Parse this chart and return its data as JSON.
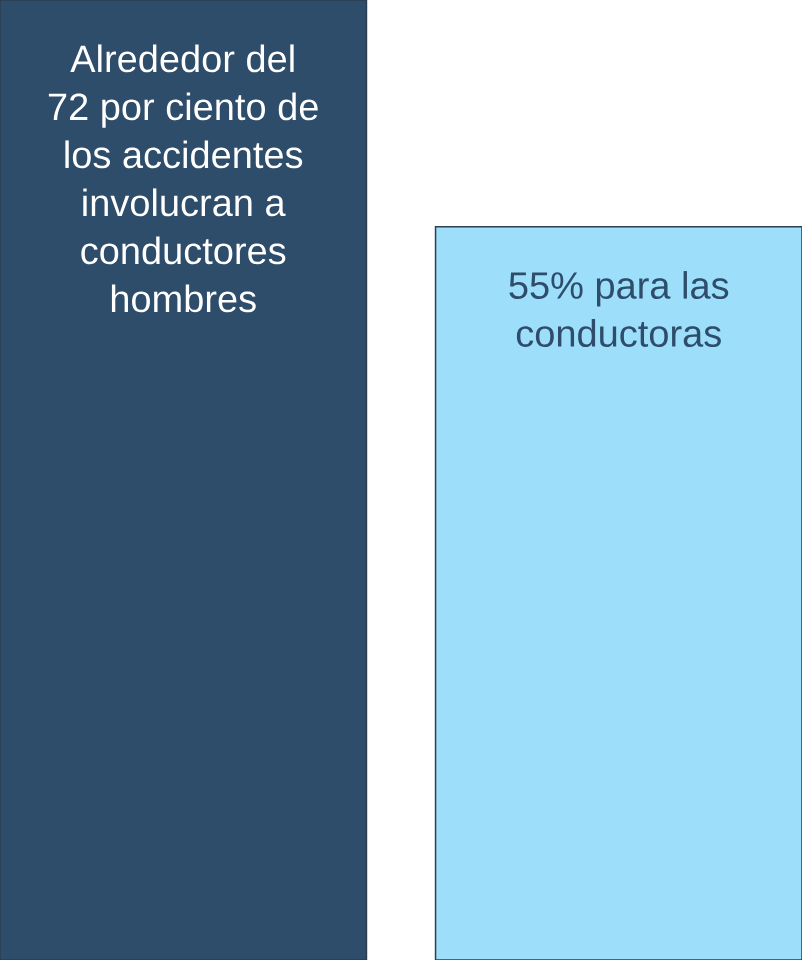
{
  "chart_data": {
    "type": "bar",
    "categories": [
      null,
      null
    ],
    "values": [
      72,
      55
    ],
    "colors": [
      "#2e4d6b",
      "#9ddffb"
    ],
    "ylim": [
      0,
      72
    ],
    "value_labels": [
      "Alrededor del 72 por ciento de los accidentes involucran a conductores hombres",
      "55% para las conductoras"
    ]
  }
}
